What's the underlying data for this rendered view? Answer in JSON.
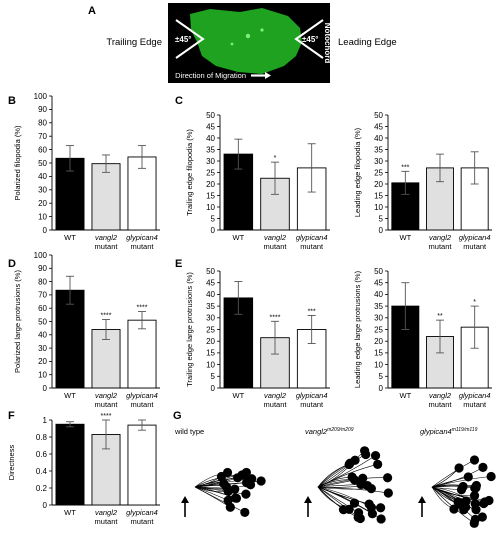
{
  "panel_a": {
    "letter": "A",
    "trailing": "Trailing Edge",
    "leading": "Leading Edge",
    "angle_left": "±45°",
    "angle_right": "±45°",
    "notochord": "Notochord",
    "direction": "Direction of Migration"
  },
  "panel_g": {
    "letter": "G",
    "wt": "wild type",
    "vangl2_gene": "vangl2",
    "vangl2_sup": "m209/m209",
    "glyp_gene": "glypican4",
    "glyp_sup": "m119/m119"
  },
  "colors": {
    "wt": "#000000",
    "vangl2": "#e0e0e0",
    "glypican4": "#ffffff",
    "cell_fill": "#22b022",
    "cell_bg": "#000000"
  },
  "chart_data": [
    {
      "id": "B",
      "letter": "B",
      "type": "bar",
      "ylabel": "Polarized filopodia (%)",
      "ylim": [
        0,
        100
      ],
      "yticks": [
        0,
        10,
        20,
        30,
        40,
        50,
        60,
        70,
        80,
        90,
        100
      ],
      "categories": [
        [
          "WT"
        ],
        [
          "vangl2",
          "mutant"
        ],
        [
          "glypican4",
          "mutant"
        ]
      ],
      "values": [
        53.5,
        49.5,
        54.5
      ],
      "errors": [
        9.5,
        6.5,
        8.5
      ],
      "stars": [
        "",
        "",
        ""
      ]
    },
    {
      "id": "C1",
      "letter": "C",
      "type": "bar",
      "ylabel": "Trailing edge filopodia (%)",
      "ylim": [
        0,
        50
      ],
      "yticks": [
        0,
        5,
        10,
        15,
        20,
        25,
        30,
        35,
        40,
        45,
        50
      ],
      "categories": [
        [
          "WT"
        ],
        [
          "vangl2",
          "mutant"
        ],
        [
          "glypican4",
          "mutant"
        ]
      ],
      "values": [
        33,
        22.5,
        27
      ],
      "errors": [
        6.5,
        7,
        10.5
      ],
      "stars": [
        "",
        "*",
        ""
      ]
    },
    {
      "id": "C2",
      "letter": "",
      "type": "bar",
      "ylabel": "Leading edge filopodia (%)",
      "ylim": [
        0,
        50
      ],
      "yticks": [
        0,
        5,
        10,
        15,
        20,
        25,
        30,
        35,
        40,
        45,
        50
      ],
      "categories": [
        [
          "WT"
        ],
        [
          "vangl2",
          "mutant"
        ],
        [
          "glypican4",
          "mutant"
        ]
      ],
      "values": [
        20.5,
        27,
        27
      ],
      "errors": [
        5,
        6,
        7
      ],
      "stars": [
        "***",
        "",
        ""
      ]
    },
    {
      "id": "D",
      "letter": "D",
      "type": "bar",
      "ylabel": "Polarized large protrusions (%)",
      "ylim": [
        0,
        100
      ],
      "yticks": [
        0,
        10,
        20,
        30,
        40,
        50,
        60,
        70,
        80,
        90,
        100
      ],
      "categories": [
        [
          "WT"
        ],
        [
          "vangl2",
          "mutant"
        ],
        [
          "glypican4",
          "mutant"
        ]
      ],
      "values": [
        73.5,
        44,
        51
      ],
      "errors": [
        10.5,
        7.5,
        6.5
      ],
      "stars": [
        "",
        "****",
        "****"
      ]
    },
    {
      "id": "E1",
      "letter": "E",
      "type": "bar",
      "ylabel": "Trailing edge large protrusions (%)",
      "ylim": [
        0,
        50
      ],
      "yticks": [
        0,
        5,
        10,
        15,
        20,
        25,
        30,
        35,
        40,
        45,
        50
      ],
      "categories": [
        [
          "WT"
        ],
        [
          "vangl2",
          "mutant"
        ],
        [
          "glypican4",
          "mutant"
        ]
      ],
      "values": [
        38.5,
        21.5,
        25
      ],
      "errors": [
        7,
        7,
        6
      ],
      "stars": [
        "",
        "****",
        "***"
      ]
    },
    {
      "id": "E2",
      "letter": "",
      "type": "bar",
      "ylabel": "Leading edge large protrusions (%)",
      "ylim": [
        0,
        50
      ],
      "yticks": [
        0,
        5,
        10,
        15,
        20,
        25,
        30,
        35,
        40,
        45,
        50
      ],
      "categories": [
        [
          "WT"
        ],
        [
          "vangl2",
          "mutant"
        ],
        [
          "glypican4",
          "mutant"
        ]
      ],
      "values": [
        35,
        22,
        26
      ],
      "errors": [
        10,
        7,
        9
      ],
      "stars": [
        "",
        "**",
        "*"
      ]
    },
    {
      "id": "F",
      "letter": "F",
      "type": "bar",
      "ylabel": "Directness",
      "ylim": [
        0,
        1
      ],
      "yticks": [
        0,
        0.2,
        0.4,
        0.6,
        0.8,
        1
      ],
      "categories": [
        [
          "WT"
        ],
        [
          "vangl2",
          "mutant"
        ],
        [
          "glypican4",
          "mutant"
        ]
      ],
      "values": [
        0.95,
        0.83,
        0.94
      ],
      "errors": [
        0.03,
        0.17,
        0.06
      ],
      "stars": [
        "",
        "****",
        ""
      ]
    }
  ]
}
